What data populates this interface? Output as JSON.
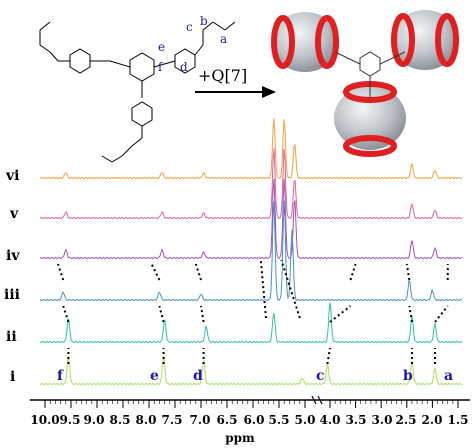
{
  "reagent": "+Q[7]",
  "spectra": [
    {
      "label": "vi",
      "color": "#f0a040"
    },
    {
      "label": "v",
      "color": "#e0609a"
    },
    {
      "label": "iv",
      "color": "#a050c0"
    },
    {
      "label": "iii",
      "color": "#4a90c8"
    },
    {
      "label": "ii",
      "color": "#2ec4a0"
    },
    {
      "label": "i",
      "color": "#a8e060"
    }
  ],
  "peak_labels": [
    {
      "text": "f",
      "ppm": 9.6
    },
    {
      "text": "e",
      "ppm": 7.75
    },
    {
      "text": "d",
      "ppm": 6.95
    },
    {
      "text": "c",
      "ppm": 4.05
    },
    {
      "text": "b",
      "ppm": 2.4
    },
    {
      "text": "a",
      "ppm": 1.95
    }
  ],
  "axis": {
    "title": "ppm",
    "ticks": [
      "10.0",
      "9.5",
      "9.0",
      "8.5",
      "8.0",
      "7.5",
      "7.0",
      "6.5",
      "6.0",
      "5.5",
      "5.0",
      "4.0",
      "3.5",
      "3.0",
      "2.5",
      "2.0",
      "1.5"
    ]
  },
  "structure_letters": [
    "a",
    "b",
    "c",
    "d",
    "e",
    "f"
  ],
  "colors": {
    "peak_label": "#1a1aa6",
    "guide": "#000000",
    "cucurbituril_rim": "#e02020",
    "cucurbituril_body": "#c8ccd0"
  }
}
